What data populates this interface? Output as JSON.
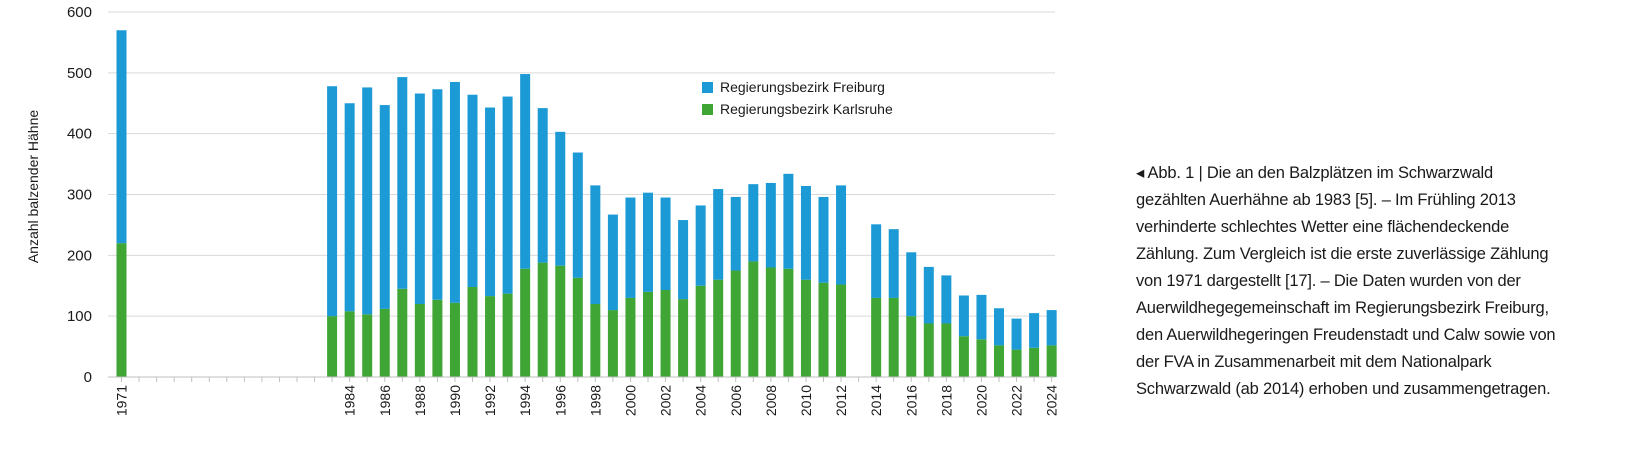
{
  "chart_data": {
    "type": "bar",
    "stacked": true,
    "ylabel": "Anzahl balzender Hähne",
    "xlabel": "",
    "ylim": [
      0,
      600
    ],
    "yticks": [
      0,
      100,
      200,
      300,
      400,
      500,
      600
    ],
    "grid": true,
    "legend_position": "top-center",
    "categories": [
      "1971",
      "1972",
      "1973",
      "1974",
      "1975",
      "1976",
      "1977",
      "1978",
      "1979",
      "1980",
      "1981",
      "1982",
      "1983",
      "1984",
      "1985",
      "1986",
      "1987",
      "1988",
      "1989",
      "1990",
      "1991",
      "1992",
      "1993",
      "1994",
      "1995",
      "1996",
      "1997",
      "1998",
      "1999",
      "2000",
      "2001",
      "2002",
      "2003",
      "2004",
      "2005",
      "2006",
      "2007",
      "2008",
      "2009",
      "2010",
      "2011",
      "2012",
      "2013",
      "2014",
      "2015",
      "2016",
      "2017",
      "2018",
      "2019",
      "2020",
      "2021",
      "2022",
      "2023",
      "2024"
    ],
    "tick_labels": [
      "1971",
      "",
      "",
      "",
      "",
      "",
      "",
      "",
      "",
      "",
      "",
      "",
      "",
      "1984",
      "",
      "1986",
      "",
      "1988",
      "",
      "1990",
      "",
      "1992",
      "",
      "1994",
      "",
      "1996",
      "",
      "1998",
      "",
      "2000",
      "",
      "2002",
      "",
      "2004",
      "",
      "2006",
      "",
      "2008",
      "",
      "2010",
      "",
      "2012",
      "",
      "2014",
      "",
      "2016",
      "",
      "2018",
      "",
      "2020",
      "",
      "2022",
      "",
      "2024"
    ],
    "series": [
      {
        "name": "Regierungsbezirk Karlsruhe",
        "color": "#3fa535",
        "values": [
          220,
          null,
          null,
          null,
          null,
          null,
          null,
          null,
          null,
          null,
          null,
          null,
          100,
          108,
          103,
          112,
          145,
          120,
          127,
          122,
          148,
          133,
          137,
          178,
          188,
          183,
          163,
          120,
          110,
          130,
          140,
          143,
          128,
          150,
          160,
          175,
          190,
          180,
          178,
          160,
          155,
          152,
          null,
          130,
          130,
          100,
          88,
          88,
          67,
          62,
          52,
          45,
          48,
          52
        ]
      },
      {
        "name": "Regierungsbezirk Freiburg",
        "color": "#1c9ad6",
        "values": [
          350,
          null,
          null,
          null,
          null,
          null,
          null,
          null,
          null,
          null,
          null,
          null,
          378,
          342,
          373,
          335,
          348,
          346,
          346,
          363,
          316,
          310,
          324,
          320,
          254,
          220,
          206,
          195,
          157,
          165,
          163,
          152,
          130,
          132,
          149,
          121,
          127,
          139,
          156,
          154,
          141,
          163,
          null,
          121,
          113,
          105,
          93,
          79,
          67,
          73,
          61,
          51,
          57,
          58
        ]
      }
    ]
  },
  "caption": {
    "line1": "◂ Abb. 1 | Die an den Balzplätzen im Schwarzwald",
    "line2": "gezählten Auerhähne ab 1983 [5]. – Im Frühling 2013",
    "line3": "verhinderte schlechtes Wetter eine flächendeckende",
    "line4": "Zählung. Zum Vergleich ist die erste zuverlässige Zählung",
    "line5": "von 1971 dargestellt [17]. – Die Daten wurden von der",
    "line6": "Auerwildhegegemeinschaft im Regierungsbezirk Freiburg,",
    "line7": "den Auerwildhegeringen Freudenstadt und Calw sowie von",
    "line8": "der FVA in Zusammenarbeit mit dem Nationalpark",
    "line9": "Schwarzwald (ab 2014) erhoben und zusammengetragen."
  }
}
